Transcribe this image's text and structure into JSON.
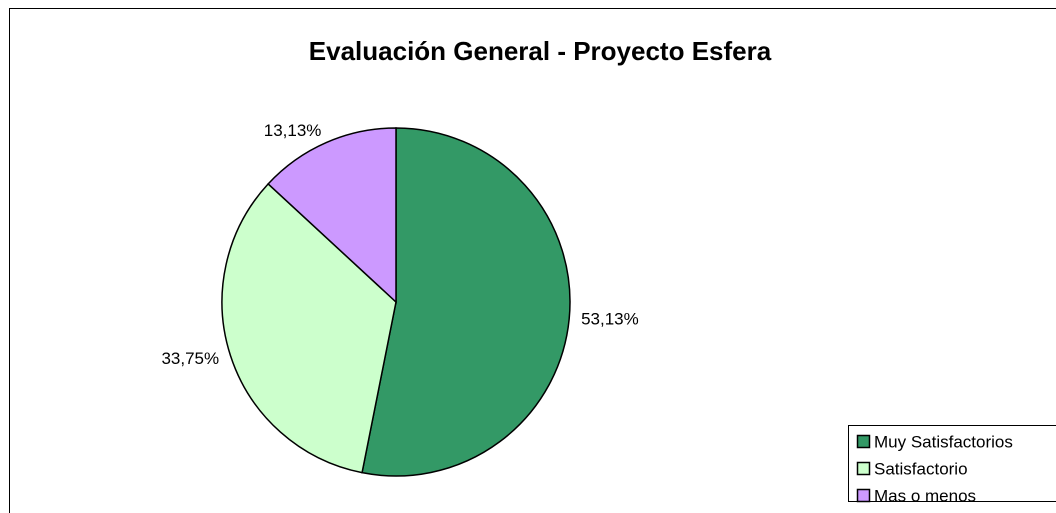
{
  "chart_data": {
    "type": "pie",
    "title": "Evaluación General - Proyecto Esfera",
    "categories": [
      "Muy Satisfactorios",
      "Satisfactorio",
      "Mas o menos"
    ],
    "values": [
      53.13,
      33.75,
      13.13
    ],
    "value_labels": [
      "53,13%",
      "33,75%",
      "13,13%"
    ],
    "colors": [
      "#339966",
      "#ccffcc",
      "#cc99ff"
    ],
    "legend": "right"
  }
}
